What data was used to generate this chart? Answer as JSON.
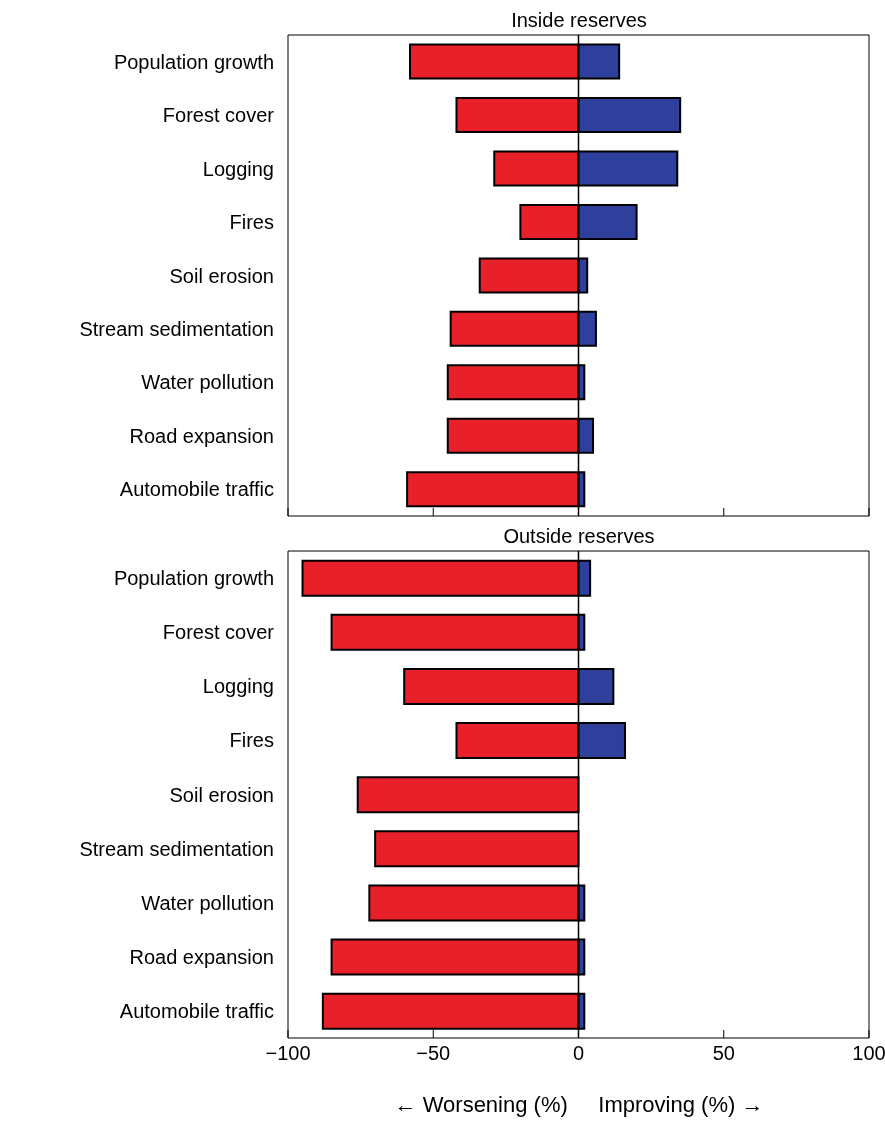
{
  "chart_data": [
    {
      "type": "bar",
      "title": "Inside reserves",
      "orientation": "horizontal",
      "stacked": true,
      "categories": [
        "Population growth",
        "Forest cover",
        "Logging",
        "Fires",
        "Soil erosion",
        "Stream sedimentation",
        "Water pollution",
        "Road expansion",
        "Automobile traffic"
      ],
      "series": [
        {
          "color": "#e8202a",
          "values": [
            -58,
            -42,
            -29,
            -20,
            -34,
            -44,
            -45,
            -45,
            -59
          ]
        },
        {
          "color": "#2e3f9c",
          "values": [
            14,
            35,
            34,
            20,
            3,
            6,
            2,
            5,
            2
          ]
        }
      ],
      "xlim": [
        -100,
        100
      ],
      "xticks": [
        -100,
        -50,
        0,
        50,
        100
      ],
      "tick_labels": "y",
      "ref_lines": [
        {
          "axis": "x",
          "value": 0
        }
      ],
      "grid": false,
      "legend": false
    },
    {
      "type": "bar",
      "title": "Outside reserves",
      "orientation": "horizontal",
      "stacked": true,
      "xlabel": "← Worsening (%)     Improving (%) →",
      "categories": [
        "Population growth",
        "Forest cover",
        "Logging",
        "Fires",
        "Soil erosion",
        "Stream sedimentation",
        "Water pollution",
        "Road expansion",
        "Automobile traffic"
      ],
      "series": [
        {
          "color": "#e8202a",
          "values": [
            -95,
            -85,
            -60,
            -42,
            -76,
            -70,
            -72,
            -85,
            -88
          ]
        },
        {
          "color": "#2e3f9c",
          "values": [
            4,
            2,
            12,
            16,
            0,
            0,
            2,
            2,
            2
          ]
        }
      ],
      "xlim": [
        -100,
        100
      ],
      "xticks": [
        -100,
        -50,
        0,
        50,
        100
      ],
      "ref_lines": [
        {
          "axis": "x",
          "value": 0
        }
      ],
      "grid": false,
      "legend": false
    }
  ]
}
